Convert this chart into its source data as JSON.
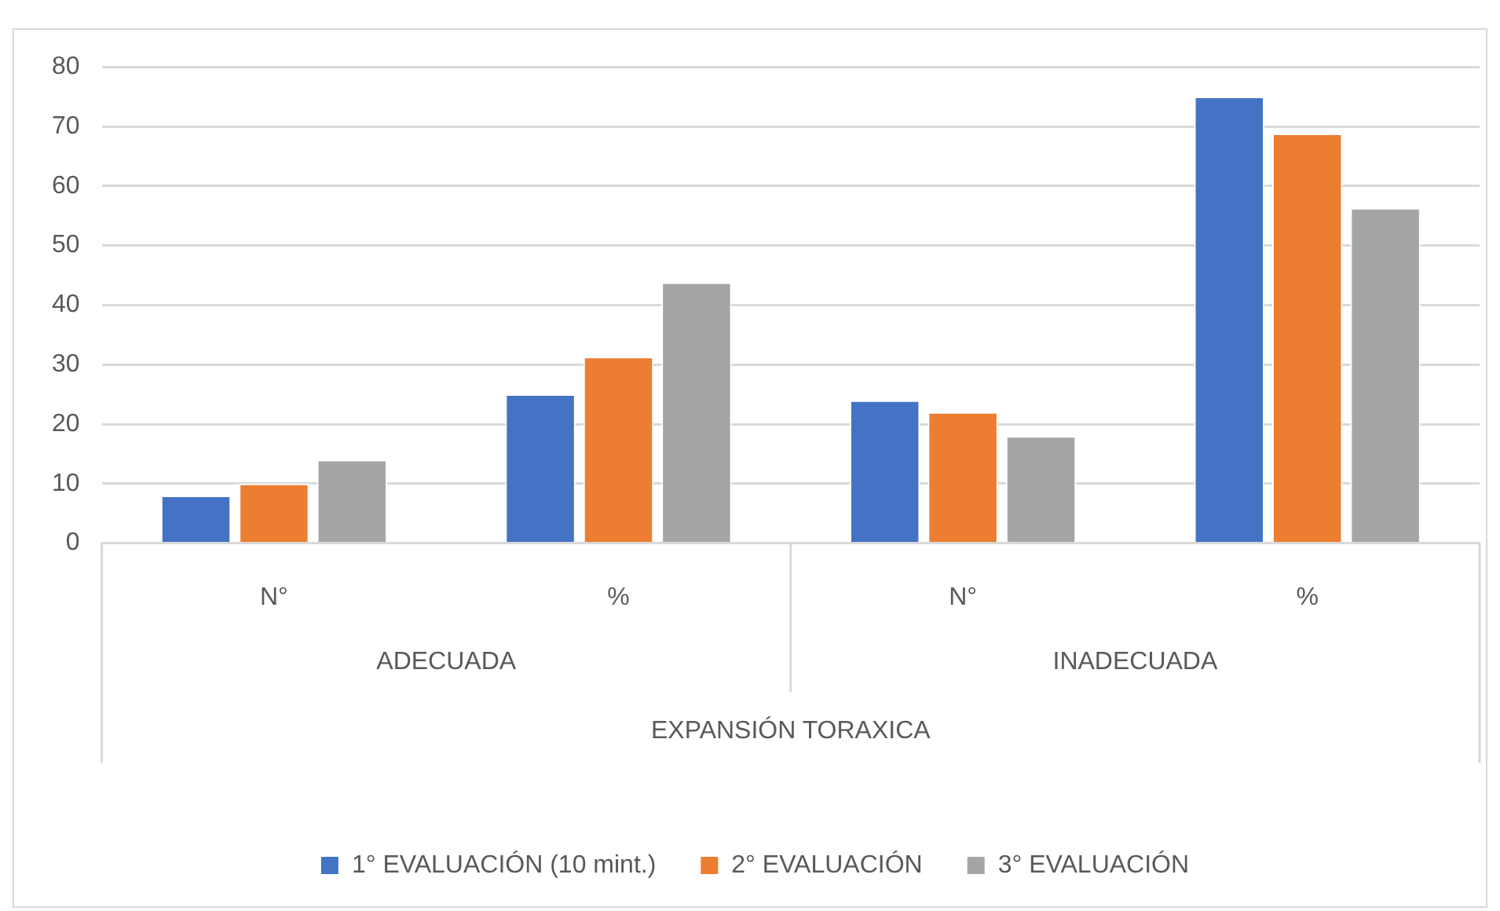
{
  "chart_data": {
    "type": "bar",
    "categories": [
      "N°",
      "%",
      "N°",
      "%"
    ],
    "series": [
      {
        "name": "1° EVALUACIÓN (10 mint.)",
        "color": "#4472c4",
        "values": [
          8,
          25,
          24,
          75
        ]
      },
      {
        "name": "2° EVALUACIÓN",
        "color": "#ed7d31",
        "values": [
          10,
          31.3,
          22,
          68.8
        ]
      },
      {
        "name": "3° EVALUACIÓN",
        "color": "#a5a5a5",
        "values": [
          14,
          43.8,
          18,
          56.3
        ]
      }
    ],
    "annotations": [
      "ADECUADA",
      "INADECUADA",
      "EXPANSIÓN TORAXICA"
    ],
    "ylim": [
      0,
      80
    ],
    "yticks": [
      0,
      10,
      20,
      30,
      40,
      50,
      60,
      70,
      80
    ],
    "grid": "y",
    "legend": "bottom"
  }
}
